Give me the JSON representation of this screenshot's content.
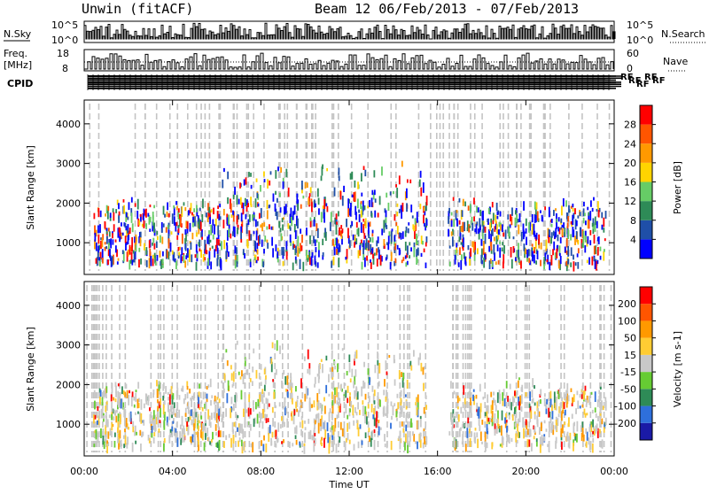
{
  "header": {
    "station": "Unwin (fitACF)",
    "beam_dates": "Beam 12  06/Feb/2013 - 07/Feb/2013"
  },
  "strip": {
    "nsky": "N.Sky",
    "nsky_tick_hi": "10^5",
    "nsky_tick_lo": "10^0",
    "nsearch": "N.Search",
    "freq": "Freq.",
    "freq_unit": "[MHz]",
    "freq_hi": "18",
    "freq_lo": "8",
    "nave": "Nave",
    "nave_hi": "60",
    "nave_lo": "0",
    "cpid": "CPID",
    "rf_fragment": "RF"
  },
  "chart_data": [
    {
      "type": "heatmap",
      "name": "power",
      "ylabel": "Slant Range [km]",
      "yticks": [
        "1000",
        "2000",
        "3000",
        "4000"
      ],
      "ylim": [
        200,
        4600
      ],
      "colorbar_label": "Power [dB]",
      "colorbar_ticks": [
        "4",
        "8",
        "12",
        "16",
        "20",
        "24",
        "28"
      ],
      "colorbar_colors": [
        "#0000ff",
        "#1f4fa8",
        "#2e8b57",
        "#66cc66",
        "#ffd400",
        "#ff9900",
        "#ff5500",
        "#ff0000"
      ]
    },
    {
      "type": "heatmap",
      "name": "velocity",
      "ylabel": "Slant Range [km]",
      "yticks": [
        "1000",
        "2000",
        "3000",
        "4000"
      ],
      "ylim": [
        200,
        4600
      ],
      "colorbar_label": "Velocity [m s-1]",
      "colorbar_ticks": [
        "200",
        "100",
        "50",
        "15",
        "-15",
        "-50",
        "-100",
        "-200"
      ],
      "colorbar_colors": [
        "#1a1aa6",
        "#2e6fdb",
        "#2e8b57",
        "#66cc33",
        "#c8c8c8",
        "#ffcc33",
        "#ff9900",
        "#ff5500",
        "#ff0000"
      ]
    }
  ],
  "xaxis": {
    "ticks": [
      "00:00",
      "04:00",
      "08:00",
      "12:00",
      "16:00",
      "20:00",
      "00:00"
    ],
    "label": "Time UT"
  }
}
